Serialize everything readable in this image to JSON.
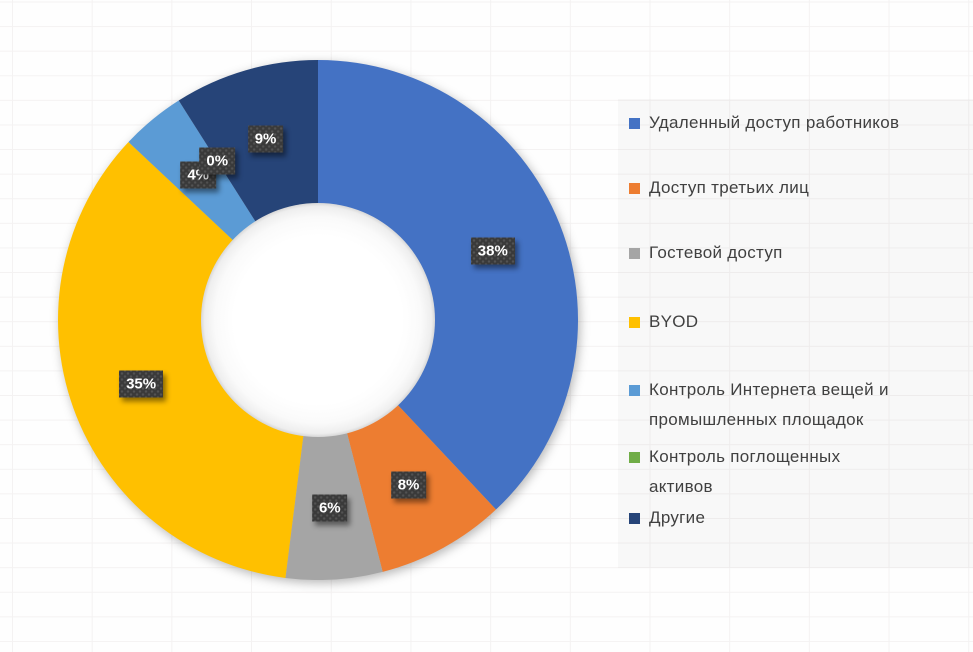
{
  "chart_data": {
    "type": "pie",
    "subtype": "donut",
    "title": "",
    "legend_position": "right",
    "categories": [
      "Удаленный доступ работников",
      "Доступ третьих лиц",
      "Гостевой доступ",
      "BYOD",
      "Контроль Интернета вещей и промышленных площадок",
      "Контроль поглощенных активов",
      "Другие"
    ],
    "values": [
      38,
      8,
      6,
      35,
      4,
      0,
      9
    ],
    "unit": "%",
    "labels": [
      "38%",
      "8%",
      "6%",
      "35%",
      "4%",
      "0%",
      "9%"
    ],
    "colors": [
      "#4472c4",
      "#ed7d31",
      "#a5a5a5",
      "#ffc000",
      "#5b9bd5",
      "#70ad47",
      "#264478"
    ],
    "start_angle_deg": 0,
    "direction": "clockwise",
    "donut_hole_ratio": 0.45
  },
  "legend": {
    "items": [
      {
        "label": "Удаленный доступ работников",
        "color": "#4472c4"
      },
      {
        "label": "Доступ третьих лиц",
        "color": "#ed7d31"
      },
      {
        "label": "Гостевой доступ",
        "color": "#a5a5a5"
      },
      {
        "label": "BYOD",
        "color": "#ffc000"
      },
      {
        "label": "Контроль Интернета вещей и\nпромышленных площадок",
        "color": "#5b9bd5"
      },
      {
        "label": "Контроль поглощенных\nактивов",
        "color": "#70ad47"
      },
      {
        "label": "Другие",
        "color": "#264478"
      }
    ]
  },
  "style": {
    "data_label_bg": "#3a3a3a",
    "data_label_text": "#ffffff",
    "legend_text_color": "#404040",
    "background": "#fefefe",
    "gridline_color": "#f4f2f2"
  }
}
